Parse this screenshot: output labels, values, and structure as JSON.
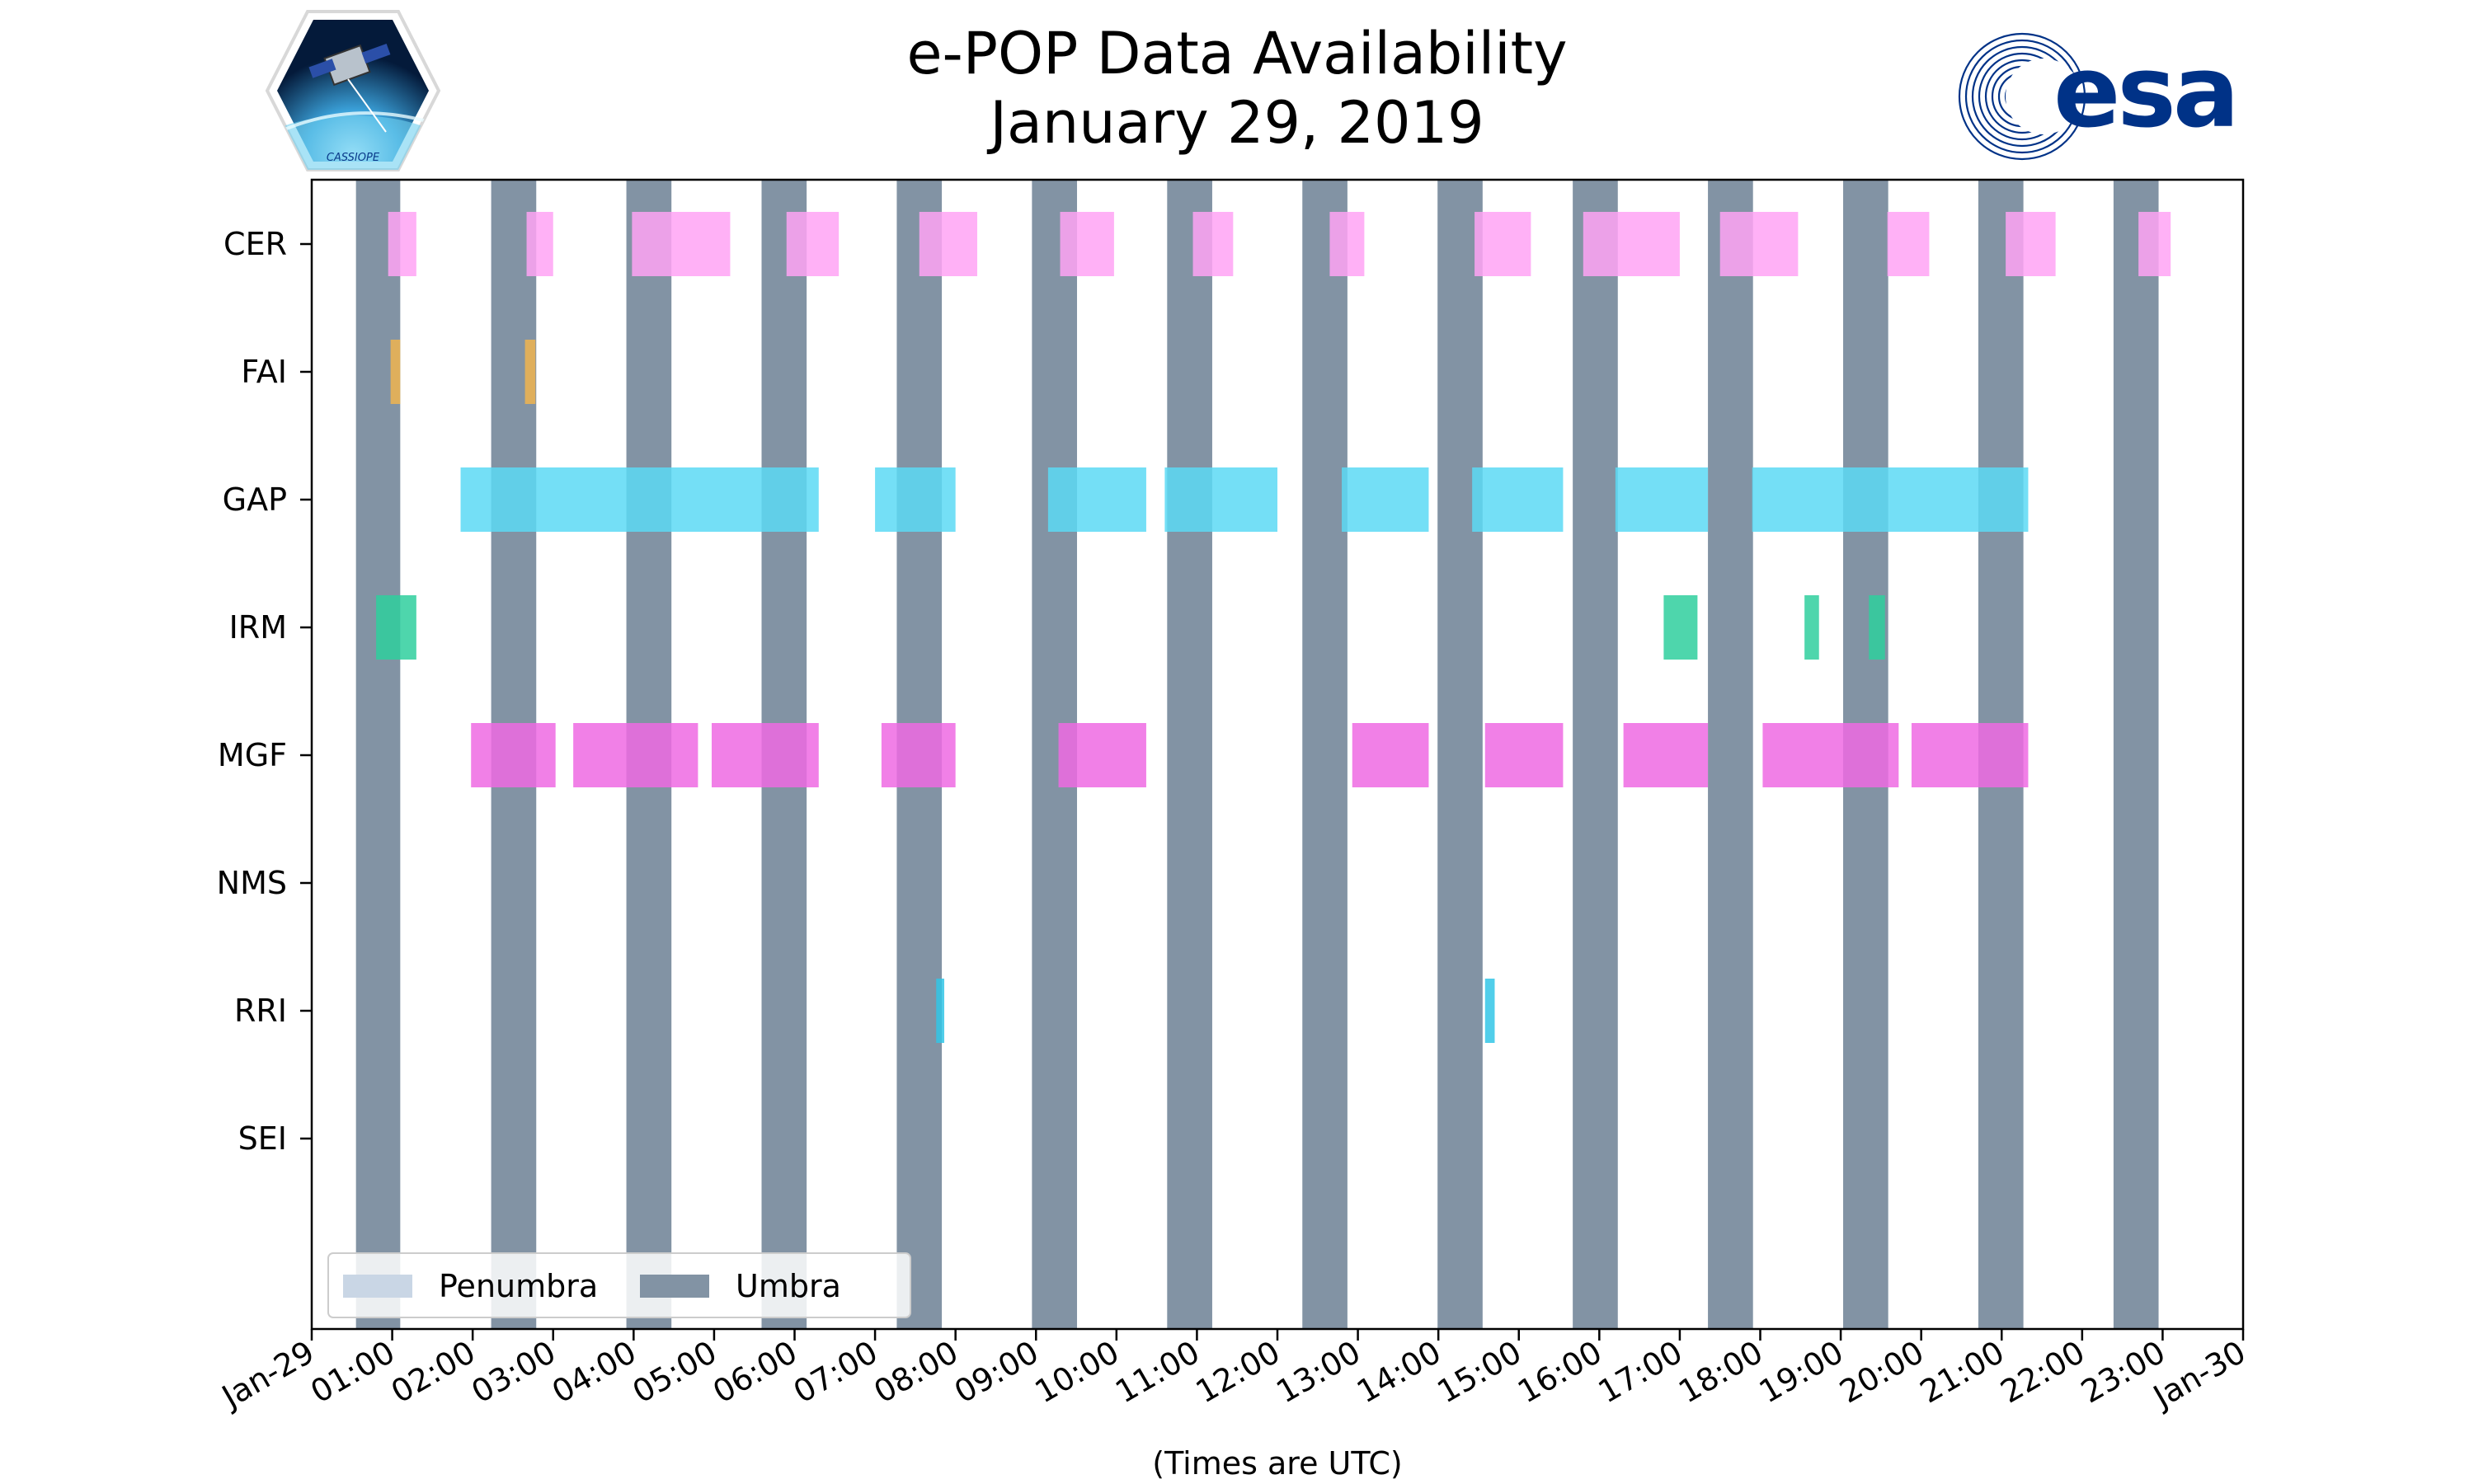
{
  "colors": {
    "umbra": "#8293a4",
    "penumbra": "#c9d6e5",
    "CER": "#ffa3f5",
    "FAI": "#f0b450",
    "GAP": "#5cd9f5",
    "IRM": "#2fcf9e",
    "MGF": "#ef6ae3",
    "RRI": "#33c6e6",
    "esa_blue": "#003287"
  },
  "logos": {
    "left_caption": "CASSIOPE",
    "right_text": "esa"
  },
  "chart_data": {
    "type": "timeline",
    "title": "e-POP Data Availability",
    "subtitle": "January 29, 2019",
    "xlabel": "(Times are UTC)",
    "xlim_hours": [
      0,
      24
    ],
    "x_ticks": [
      {
        "t": 0,
        "label": "Jan-29"
      },
      {
        "t": 1,
        "label": "01:00"
      },
      {
        "t": 2,
        "label": "02:00"
      },
      {
        "t": 3,
        "label": "03:00"
      },
      {
        "t": 4,
        "label": "04:00"
      },
      {
        "t": 5,
        "label": "05:00"
      },
      {
        "t": 6,
        "label": "06:00"
      },
      {
        "t": 7,
        "label": "07:00"
      },
      {
        "t": 8,
        "label": "08:00"
      },
      {
        "t": 9,
        "label": "09:00"
      },
      {
        "t": 10,
        "label": "10:00"
      },
      {
        "t": 11,
        "label": "11:00"
      },
      {
        "t": 12,
        "label": "12:00"
      },
      {
        "t": 13,
        "label": "13:00"
      },
      {
        "t": 14,
        "label": "14:00"
      },
      {
        "t": 15,
        "label": "15:00"
      },
      {
        "t": 16,
        "label": "16:00"
      },
      {
        "t": 17,
        "label": "17:00"
      },
      {
        "t": 18,
        "label": "18:00"
      },
      {
        "t": 19,
        "label": "19:00"
      },
      {
        "t": 20,
        "label": "20:00"
      },
      {
        "t": 21,
        "label": "21:00"
      },
      {
        "t": 22,
        "label": "22:00"
      },
      {
        "t": 23,
        "label": "23:00"
      },
      {
        "t": 24,
        "label": "Jan-30"
      }
    ],
    "instruments": [
      "CER",
      "FAI",
      "GAP",
      "IRM",
      "MGF",
      "NMS",
      "RRI",
      "SEI"
    ],
    "umbra": [
      [
        0.55,
        1.1
      ],
      [
        2.23,
        2.79
      ],
      [
        3.91,
        4.47
      ],
      [
        5.59,
        6.15
      ],
      [
        7.27,
        7.83
      ],
      [
        8.95,
        9.51
      ],
      [
        10.63,
        11.19
      ],
      [
        12.31,
        12.87
      ],
      [
        13.99,
        14.55
      ],
      [
        15.67,
        16.23
      ],
      [
        17.35,
        17.91
      ],
      [
        19.03,
        19.59
      ],
      [
        20.71,
        21.27
      ],
      [
        22.39,
        22.95
      ]
    ],
    "intervals": {
      "CER": [
        [
          0.95,
          1.3
        ],
        [
          2.67,
          3.0
        ],
        [
          3.98,
          5.2
        ],
        [
          5.9,
          6.55
        ],
        [
          7.55,
          8.27
        ],
        [
          9.3,
          9.97
        ],
        [
          10.95,
          11.45
        ],
        [
          12.65,
          13.08
        ],
        [
          14.45,
          15.15
        ],
        [
          15.8,
          17.0
        ],
        [
          17.5,
          18.47
        ],
        [
          19.58,
          20.1
        ],
        [
          21.05,
          21.67
        ],
        [
          22.7,
          23.1
        ]
      ],
      "FAI": [
        [
          0.98,
          1.1
        ],
        [
          2.65,
          2.78
        ]
      ],
      "GAP": [
        [
          1.85,
          6.3
        ],
        [
          7.0,
          8.0
        ],
        [
          9.15,
          10.37
        ],
        [
          10.6,
          12.0
        ],
        [
          12.8,
          13.88
        ],
        [
          14.42,
          15.55
        ],
        [
          16.2,
          17.35
        ],
        [
          17.9,
          21.33
        ]
      ],
      "IRM": [
        [
          0.8,
          1.3
        ],
        [
          16.8,
          17.22
        ],
        [
          18.55,
          18.73
        ],
        [
          19.35,
          19.55
        ]
      ],
      "MGF": [
        [
          1.98,
          3.03
        ],
        [
          3.25,
          4.8
        ],
        [
          4.97,
          6.3
        ],
        [
          7.08,
          8.0
        ],
        [
          9.28,
          10.37
        ],
        [
          12.93,
          13.88
        ],
        [
          14.58,
          15.55
        ],
        [
          16.3,
          17.35
        ],
        [
          18.03,
          19.72
        ],
        [
          19.88,
          21.33
        ]
      ],
      "NMS": [],
      "RRI": [
        [
          7.76,
          7.86
        ],
        [
          14.58,
          14.7
        ]
      ],
      "SEI": []
    },
    "legend": {
      "position": "lower-left",
      "entries": [
        {
          "label": "Penumbra",
          "color_key": "penumbra"
        },
        {
          "label": "Umbra",
          "color_key": "umbra"
        }
      ]
    }
  }
}
